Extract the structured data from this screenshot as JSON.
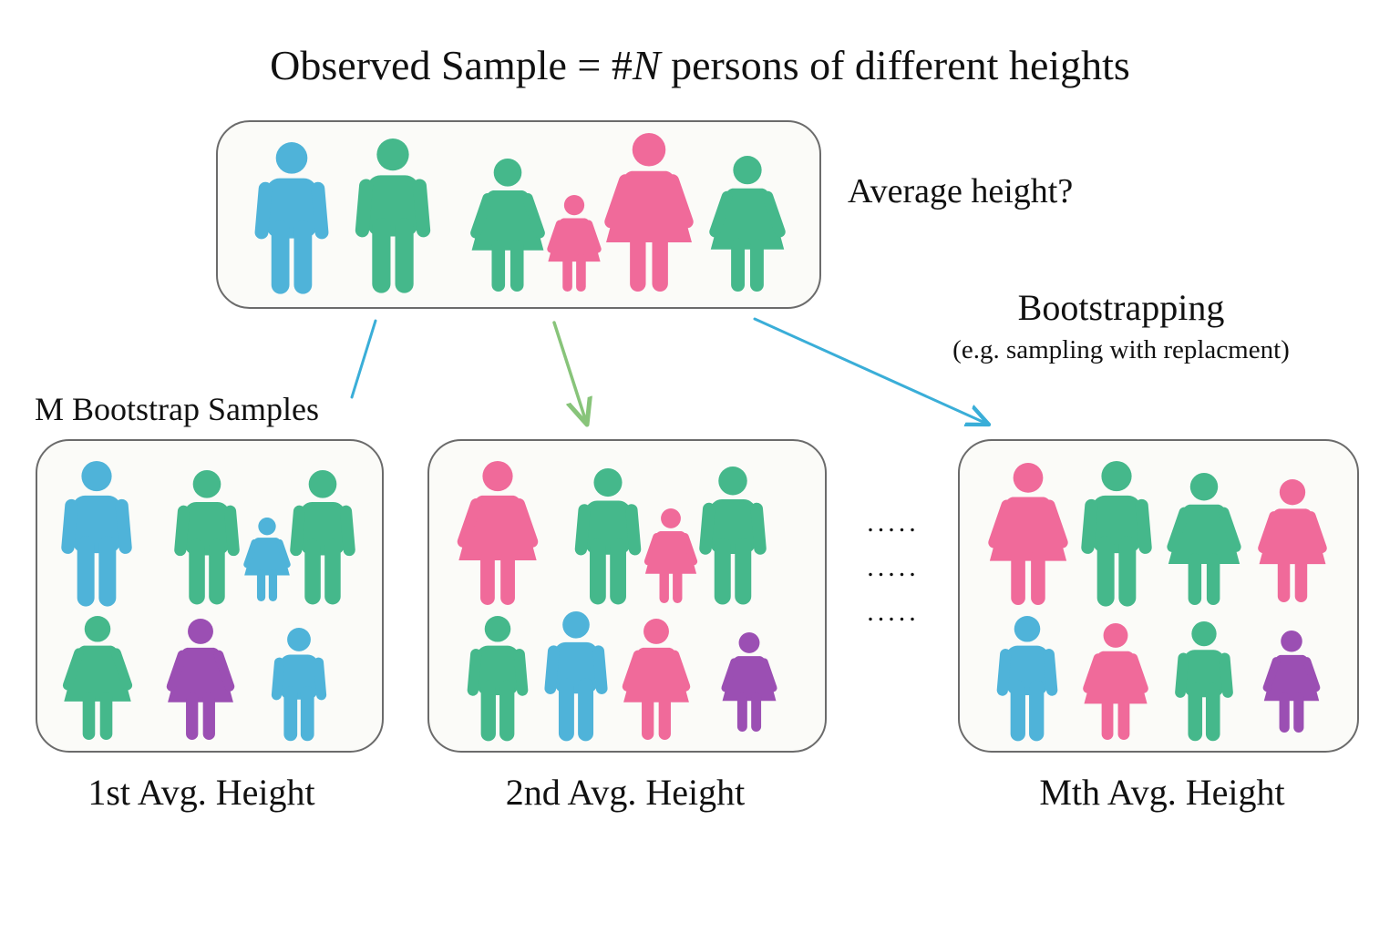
{
  "title": {
    "prefix": "Observed Sample = #",
    "variable": "N",
    "suffix": " persons of different heights"
  },
  "question": "Average height?",
  "method": {
    "label": "Bootstrapping",
    "note": "(e.g. sampling with replacment)"
  },
  "samples_label": "M Bootstrap Samples",
  "ellipsis": ".....",
  "captions": [
    "1st Avg. Height",
    "2nd Avg. Height",
    "Mth Avg. Height"
  ],
  "colors": {
    "blue": "#4fb3d9",
    "green": "#45b88b",
    "pink": "#f06a9a",
    "purple": "#9b4fb3",
    "box_border": "#6b6b6b",
    "box_fill": "#fbfbf8",
    "arrow_blue": "#3aaed8",
    "arrow_green": "#88c47a"
  },
  "groups": {
    "observed": [
      {
        "kind": "man",
        "color": "blue"
      },
      {
        "kind": "man",
        "color": "green"
      },
      {
        "kind": "woman",
        "color": "green"
      },
      {
        "kind": "child",
        "color": "pink"
      },
      {
        "kind": "woman",
        "color": "pink"
      },
      {
        "kind": "woman",
        "color": "green"
      }
    ],
    "bootstrap_1": [
      {
        "kind": "man",
        "color": "blue"
      },
      {
        "kind": "man",
        "color": "green"
      },
      {
        "kind": "child",
        "color": "blue"
      },
      {
        "kind": "man",
        "color": "green"
      },
      {
        "kind": "woman",
        "color": "green"
      },
      {
        "kind": "woman",
        "color": "purple"
      },
      {
        "kind": "man",
        "color": "blue"
      }
    ],
    "bootstrap_2": [
      {
        "kind": "woman",
        "color": "pink"
      },
      {
        "kind": "man",
        "color": "green"
      },
      {
        "kind": "child",
        "color": "pink"
      },
      {
        "kind": "man",
        "color": "green"
      },
      {
        "kind": "man",
        "color": "green"
      },
      {
        "kind": "man",
        "color": "blue"
      },
      {
        "kind": "woman",
        "color": "pink"
      },
      {
        "kind": "child",
        "color": "purple"
      }
    ],
    "bootstrap_m": [
      {
        "kind": "woman",
        "color": "pink"
      },
      {
        "kind": "man",
        "color": "green"
      },
      {
        "kind": "woman",
        "color": "green"
      },
      {
        "kind": "woman",
        "color": "pink"
      },
      {
        "kind": "man",
        "color": "blue"
      },
      {
        "kind": "woman",
        "color": "pink"
      },
      {
        "kind": "man",
        "color": "green"
      },
      {
        "kind": "woman",
        "color": "purple"
      }
    ]
  }
}
